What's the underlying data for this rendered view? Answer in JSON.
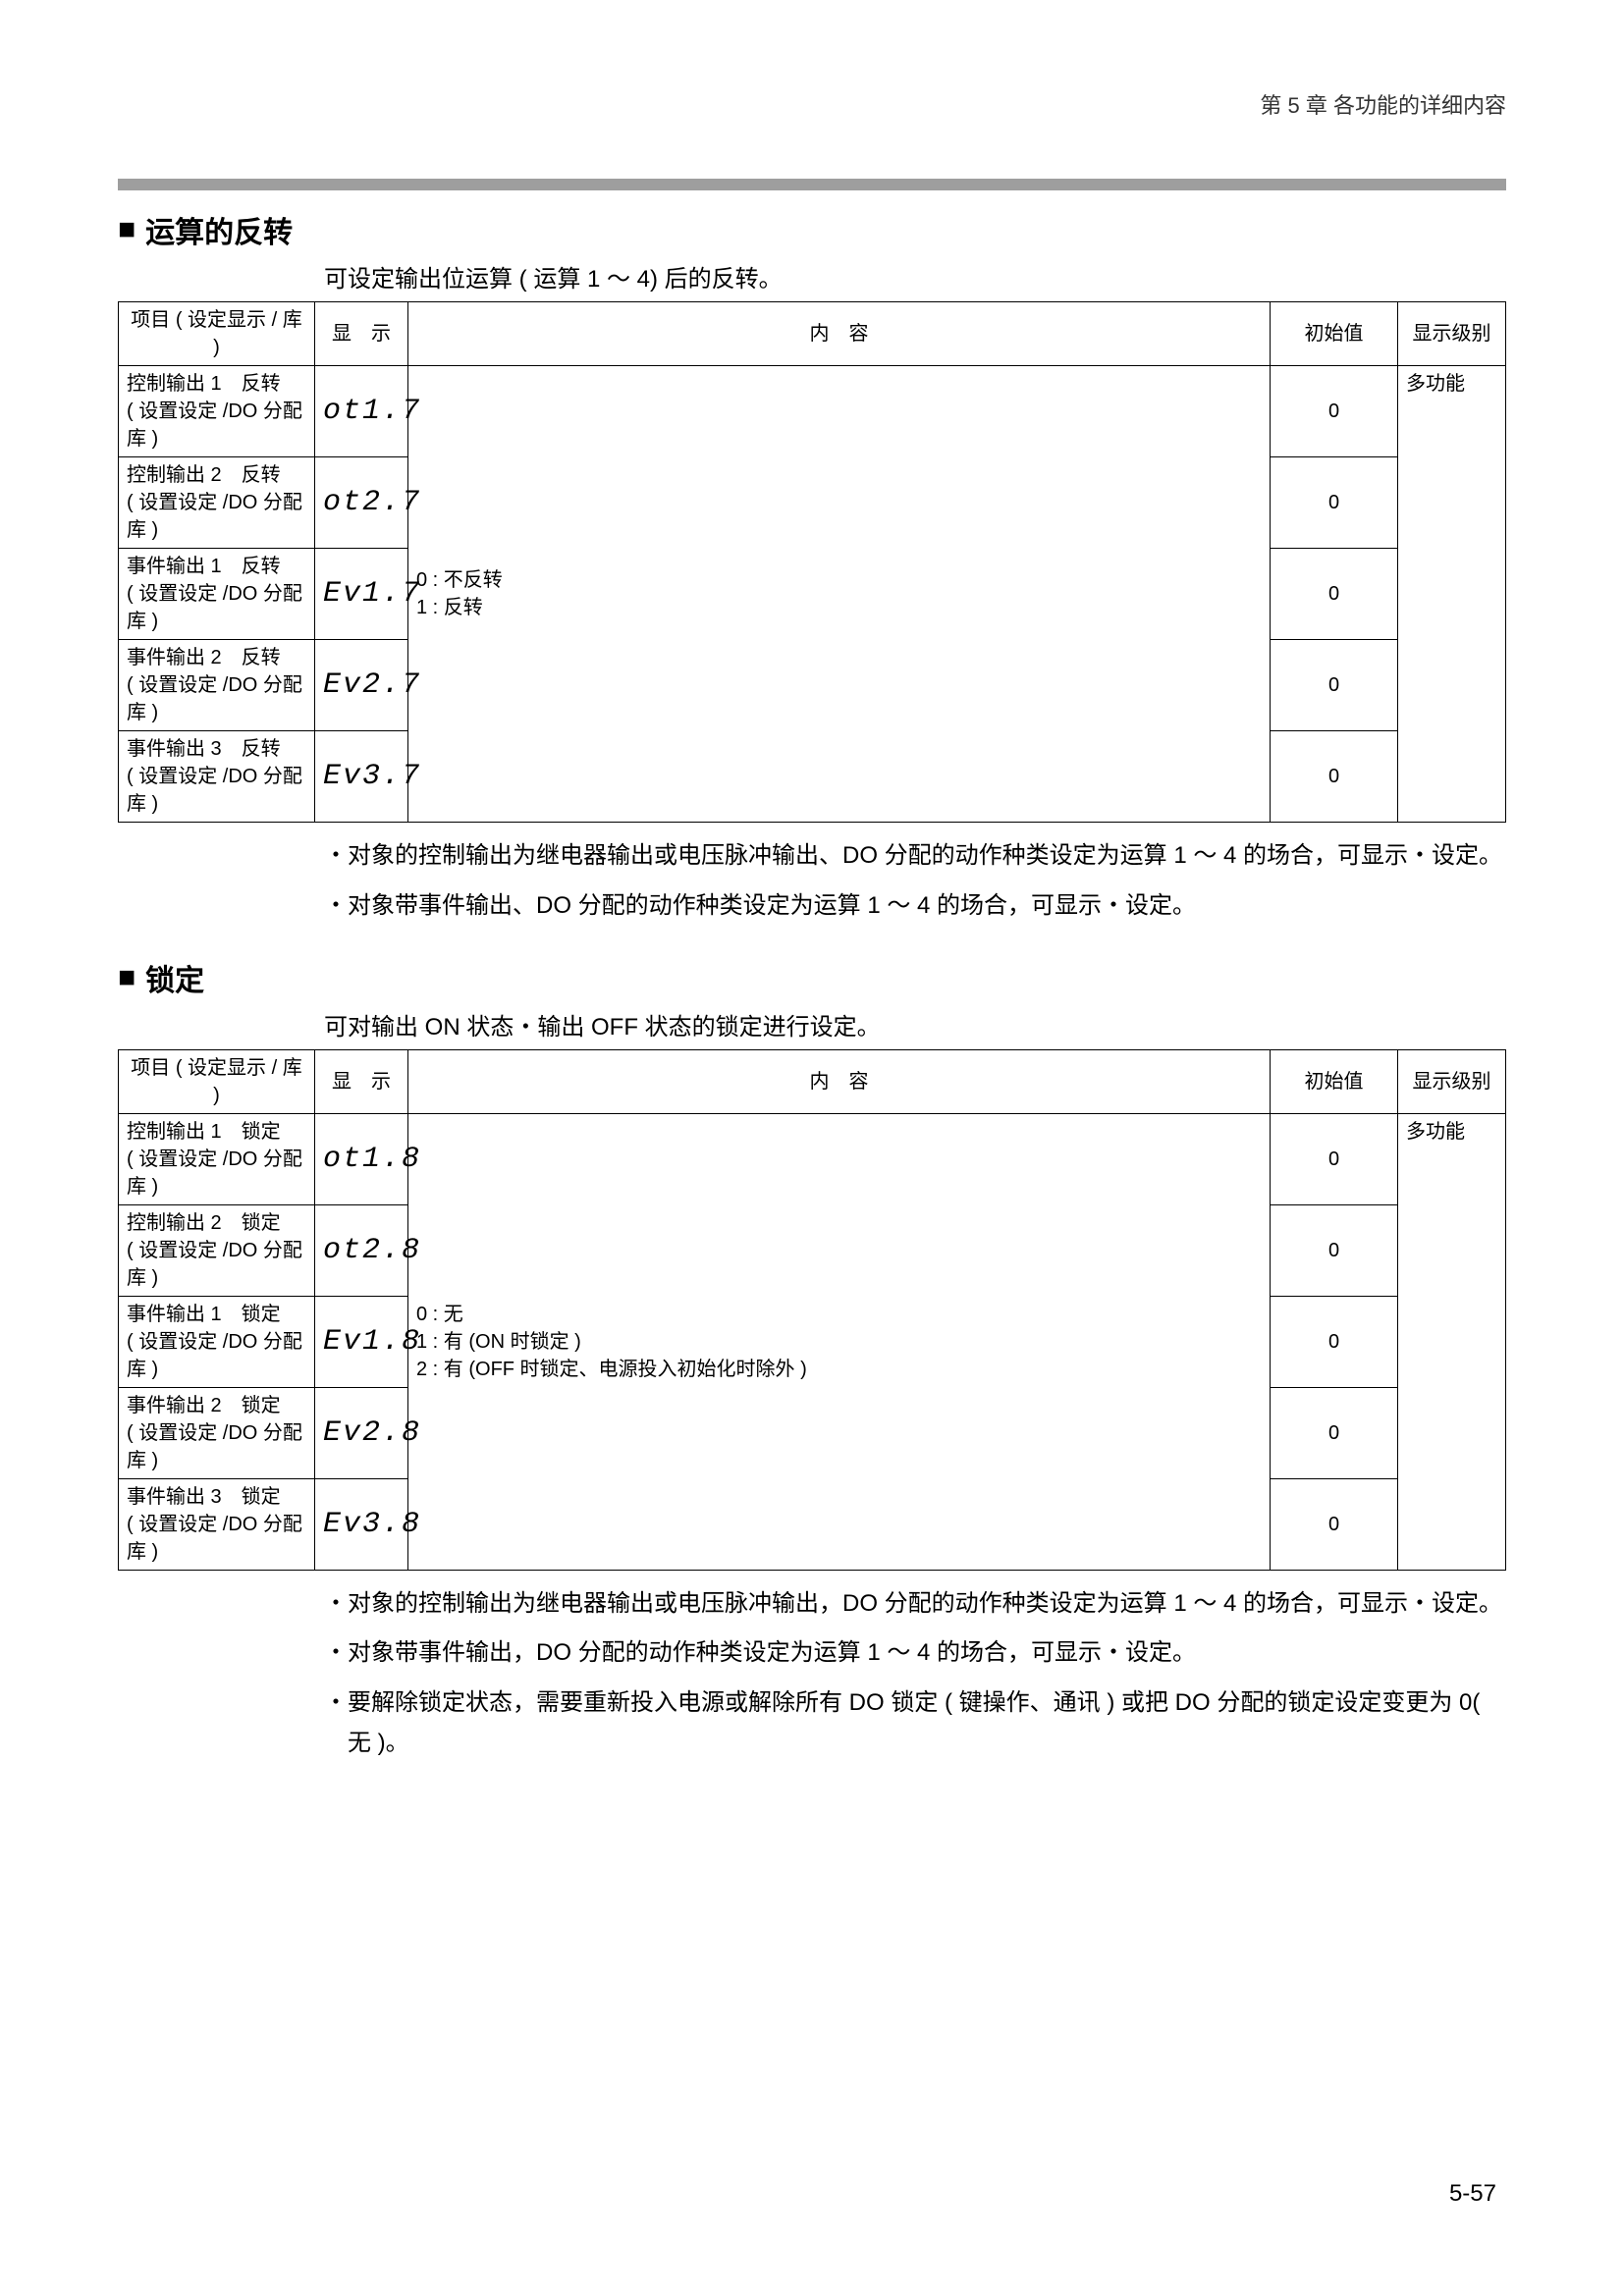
{
  "header": "第 5 章 各功能的详细内容",
  "page_number": "5-57",
  "sections": [
    {
      "title": "运算的反转",
      "intro": "可设定输出位运算 ( 运算 1 ～ 4) 后的反转。",
      "columns": [
        "项目 ( 设定显示 / 库 )",
        "显　示",
        "内　容",
        "初始值",
        "显示级别"
      ],
      "content_lines": "0 : 不反转\n1 : 反转",
      "rows": [
        {
          "item_l1": "控制输出 1　反转",
          "item_l2": "( 设置设定 /DO 分配库 )",
          "display": "ot1.7",
          "initial": "0",
          "level": "多功能"
        },
        {
          "item_l1": "控制输出 2　反转",
          "item_l2": "( 设置设定 /DO 分配库 )",
          "display": "ot2.7",
          "initial": "0",
          "level": ""
        },
        {
          "item_l1": "事件输出 1　反转",
          "item_l2": "( 设置设定 /DO 分配库 )",
          "display": "Ev1.7",
          "initial": "0",
          "level": ""
        },
        {
          "item_l1": "事件输出 2　反转",
          "item_l2": "( 设置设定 /DO 分配库 )",
          "display": "Ev2.7",
          "initial": "0",
          "level": ""
        },
        {
          "item_l1": "事件输出 3　反转",
          "item_l2": "( 设置设定 /DO 分配库 )",
          "display": "Ev3.7",
          "initial": "0",
          "level": ""
        }
      ],
      "bullets": [
        "对象的控制输出为继电器输出或电压脉冲输出、DO 分配的动作种类设定为运算 1 ～ 4 的场合，可显示・设定。",
        "对象带事件输出、DO 分配的动作种类设定为运算 1 ～ 4 的场合，可显示・设定。"
      ]
    },
    {
      "title": "锁定",
      "intro": "可对输出 ON 状态・输出 OFF 状态的锁定进行设定。",
      "columns": [
        "项目 ( 设定显示 / 库 )",
        "显　示",
        "内　容",
        "初始值",
        "显示级别"
      ],
      "content_lines": "0 : 无\n1 : 有 (ON 时锁定 )\n2 : 有 (OFF 时锁定、电源投入初始化时除外 )",
      "rows": [
        {
          "item_l1": "控制输出 1　锁定",
          "item_l2": "( 设置设定 /DO 分配库 )",
          "display": "ot1.8",
          "initial": "0",
          "level": "多功能"
        },
        {
          "item_l1": "控制输出 2　锁定",
          "item_l2": "( 设置设定 /DO 分配库 )",
          "display": "ot2.8",
          "initial": "0",
          "level": ""
        },
        {
          "item_l1": "事件输出 1　锁定",
          "item_l2": "( 设置设定 /DO 分配库 )",
          "display": "Ev1.8",
          "initial": "0",
          "level": ""
        },
        {
          "item_l1": "事件输出 2　锁定",
          "item_l2": "( 设置设定 /DO 分配库 )",
          "display": "Ev2.8",
          "initial": "0",
          "level": ""
        },
        {
          "item_l1": "事件输出 3　锁定",
          "item_l2": "( 设置设定 /DO 分配库 )",
          "display": "Ev3.8",
          "initial": "0",
          "level": ""
        }
      ],
      "bullets": [
        "对象的控制输出为继电器输出或电压脉冲输出，DO 分配的动作种类设定为运算 1 ～ 4 的场合，可显示・设定。",
        "对象带事件输出，DO 分配的动作种类设定为运算 1 ～ 4 的场合，可显示・设定。",
        "要解除锁定状态，需要重新投入电源或解除所有 DO 锁定 ( 键操作、通讯 ) 或把 DO 分配的锁定设定变更为 0( 无 )。"
      ]
    }
  ]
}
